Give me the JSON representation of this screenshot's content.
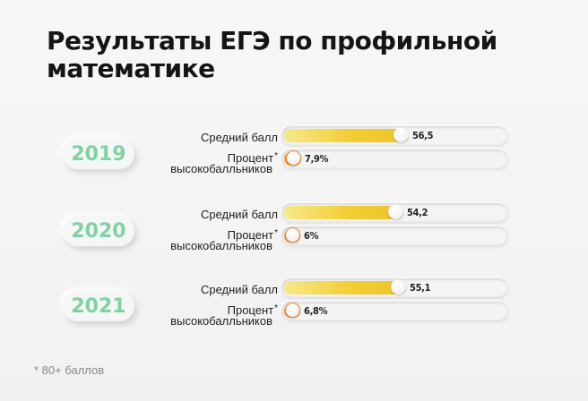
{
  "title_lines": [
    "Результаты ЕГЭ по профильной",
    "математике"
  ],
  "labels": {
    "avg": "Средний балл",
    "high_line1": "Процент",
    "high_line2": "высокобалльников",
    "star": "*"
  },
  "colors": {
    "year": "#7fd3a1",
    "avg_bar": "#f2cd34",
    "high_bar": "#ee7d22"
  },
  "footnote": "* 80+ баллов",
  "chart_data": {
    "type": "bar",
    "orientation": "horizontal",
    "title": "Результаты ЕГЭ по профильной математике",
    "xlim": [
      0,
      100
    ],
    "categories": [
      "2019",
      "2020",
      "2021"
    ],
    "series": [
      {
        "name": "Средний балл",
        "values": [
          56.5,
          54.2,
          55.1
        ],
        "labels": [
          "56,5",
          "54,2",
          "55,1"
        ]
      },
      {
        "name": "Процент высокобалльников",
        "values": [
          7.9,
          6,
          6.8
        ],
        "labels": [
          "7,9%",
          "6%",
          "6,8%"
        ]
      }
    ]
  }
}
